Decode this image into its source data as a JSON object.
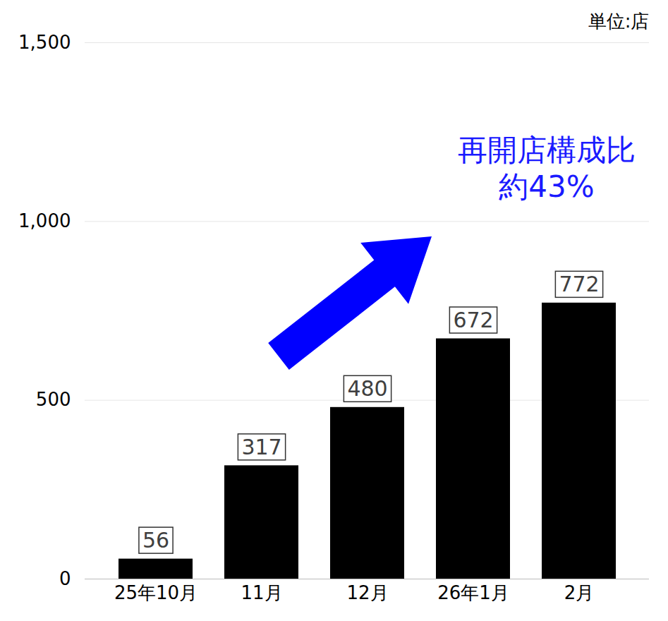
{
  "chart_data": {
    "type": "bar",
    "unit_label": "単位:店",
    "annotation": [
      "再開店構成比",
      "約43%"
    ],
    "categories": [
      "25年10月",
      "11月",
      "12月",
      "26年1月",
      "2月"
    ],
    "values": [
      56,
      317,
      480,
      672,
      772
    ],
    "color": "#000000",
    "ylim": [
      0,
      1500
    ],
    "yticks": [
      0,
      500,
      1000,
      1500
    ],
    "grid": true,
    "data_labels": true
  }
}
